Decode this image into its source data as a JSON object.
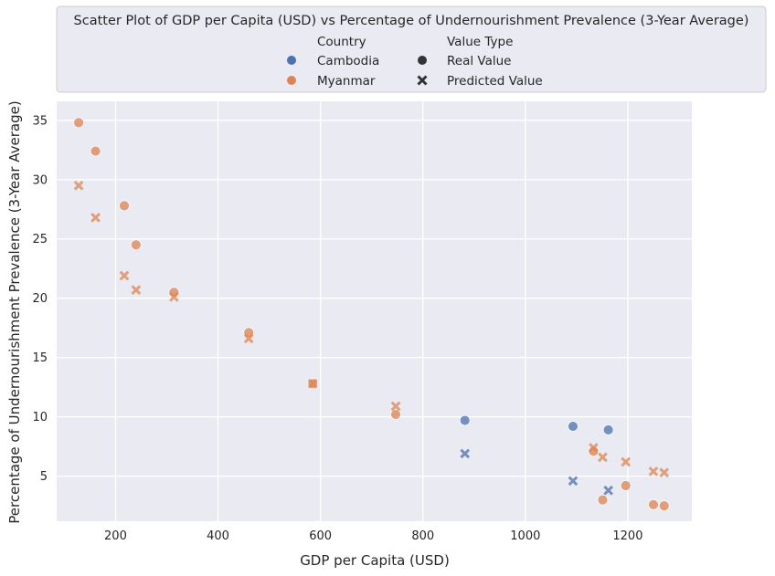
{
  "chart_data": {
    "type": "scatter",
    "title": "Scatter Plot of GDP per Capita (USD) vs Percentage of Undernourishment Prevalence (3-Year Average)",
    "xlabel": "GDP per Capita (USD)",
    "ylabel": "Percentage of Undernourishment Prevalence (3-Year Average)",
    "xlim": [
      85,
      1325
    ],
    "ylim": [
      1.2,
      36.6
    ],
    "xticks": [
      200,
      400,
      600,
      800,
      1000,
      1200
    ],
    "yticks": [
      5,
      10,
      15,
      20,
      25,
      30,
      35
    ],
    "grid": true,
    "legend": {
      "placement": "top-center",
      "hue_title": "Country",
      "style_title": "Value Type",
      "hue_entries": [
        "Cambodia",
        "Myanmar"
      ],
      "style_entries": [
        "Real Value",
        "Predicted Value"
      ]
    },
    "colors": {
      "Cambodia": "#4c72b0",
      "Myanmar": "#dd8452",
      "background": "#eaeaf2",
      "grid": "#ffffff",
      "marker_key": "#333333"
    },
    "series": [
      {
        "country": "Cambodia",
        "value_type": "Real Value",
        "marker": "circle",
        "points": [
          [
            882,
            9.7
          ],
          [
            1093,
            9.2
          ],
          [
            1162,
            8.9
          ]
        ]
      },
      {
        "country": "Cambodia",
        "value_type": "Predicted Value",
        "marker": "x",
        "points": [
          [
            882,
            6.9
          ],
          [
            1093,
            4.6
          ],
          [
            1162,
            3.8
          ]
        ]
      },
      {
        "country": "Myanmar",
        "value_type": "Real Value",
        "marker": "circle",
        "points": [
          [
            128,
            34.8
          ],
          [
            161,
            32.4
          ],
          [
            217,
            27.8
          ],
          [
            240,
            24.5
          ],
          [
            314,
            20.5
          ],
          [
            460,
            17.1
          ],
          [
            585,
            12.8
          ],
          [
            747,
            10.2
          ],
          [
            1133,
            7.1
          ],
          [
            1151,
            3.0
          ],
          [
            1196,
            4.2
          ],
          [
            1250,
            2.6
          ],
          [
            1271,
            2.5
          ]
        ]
      },
      {
        "country": "Myanmar",
        "value_type": "Predicted Value",
        "marker": "x",
        "points": [
          [
            128,
            29.5
          ],
          [
            161,
            26.8
          ],
          [
            217,
            21.9
          ],
          [
            240,
            20.7
          ],
          [
            314,
            20.1
          ],
          [
            460,
            16.6
          ],
          [
            585,
            12.8
          ],
          [
            747,
            10.9
          ],
          [
            1133,
            7.4
          ],
          [
            1151,
            6.6
          ],
          [
            1196,
            6.2
          ],
          [
            1250,
            5.4
          ],
          [
            1271,
            5.3
          ]
        ]
      }
    ]
  }
}
